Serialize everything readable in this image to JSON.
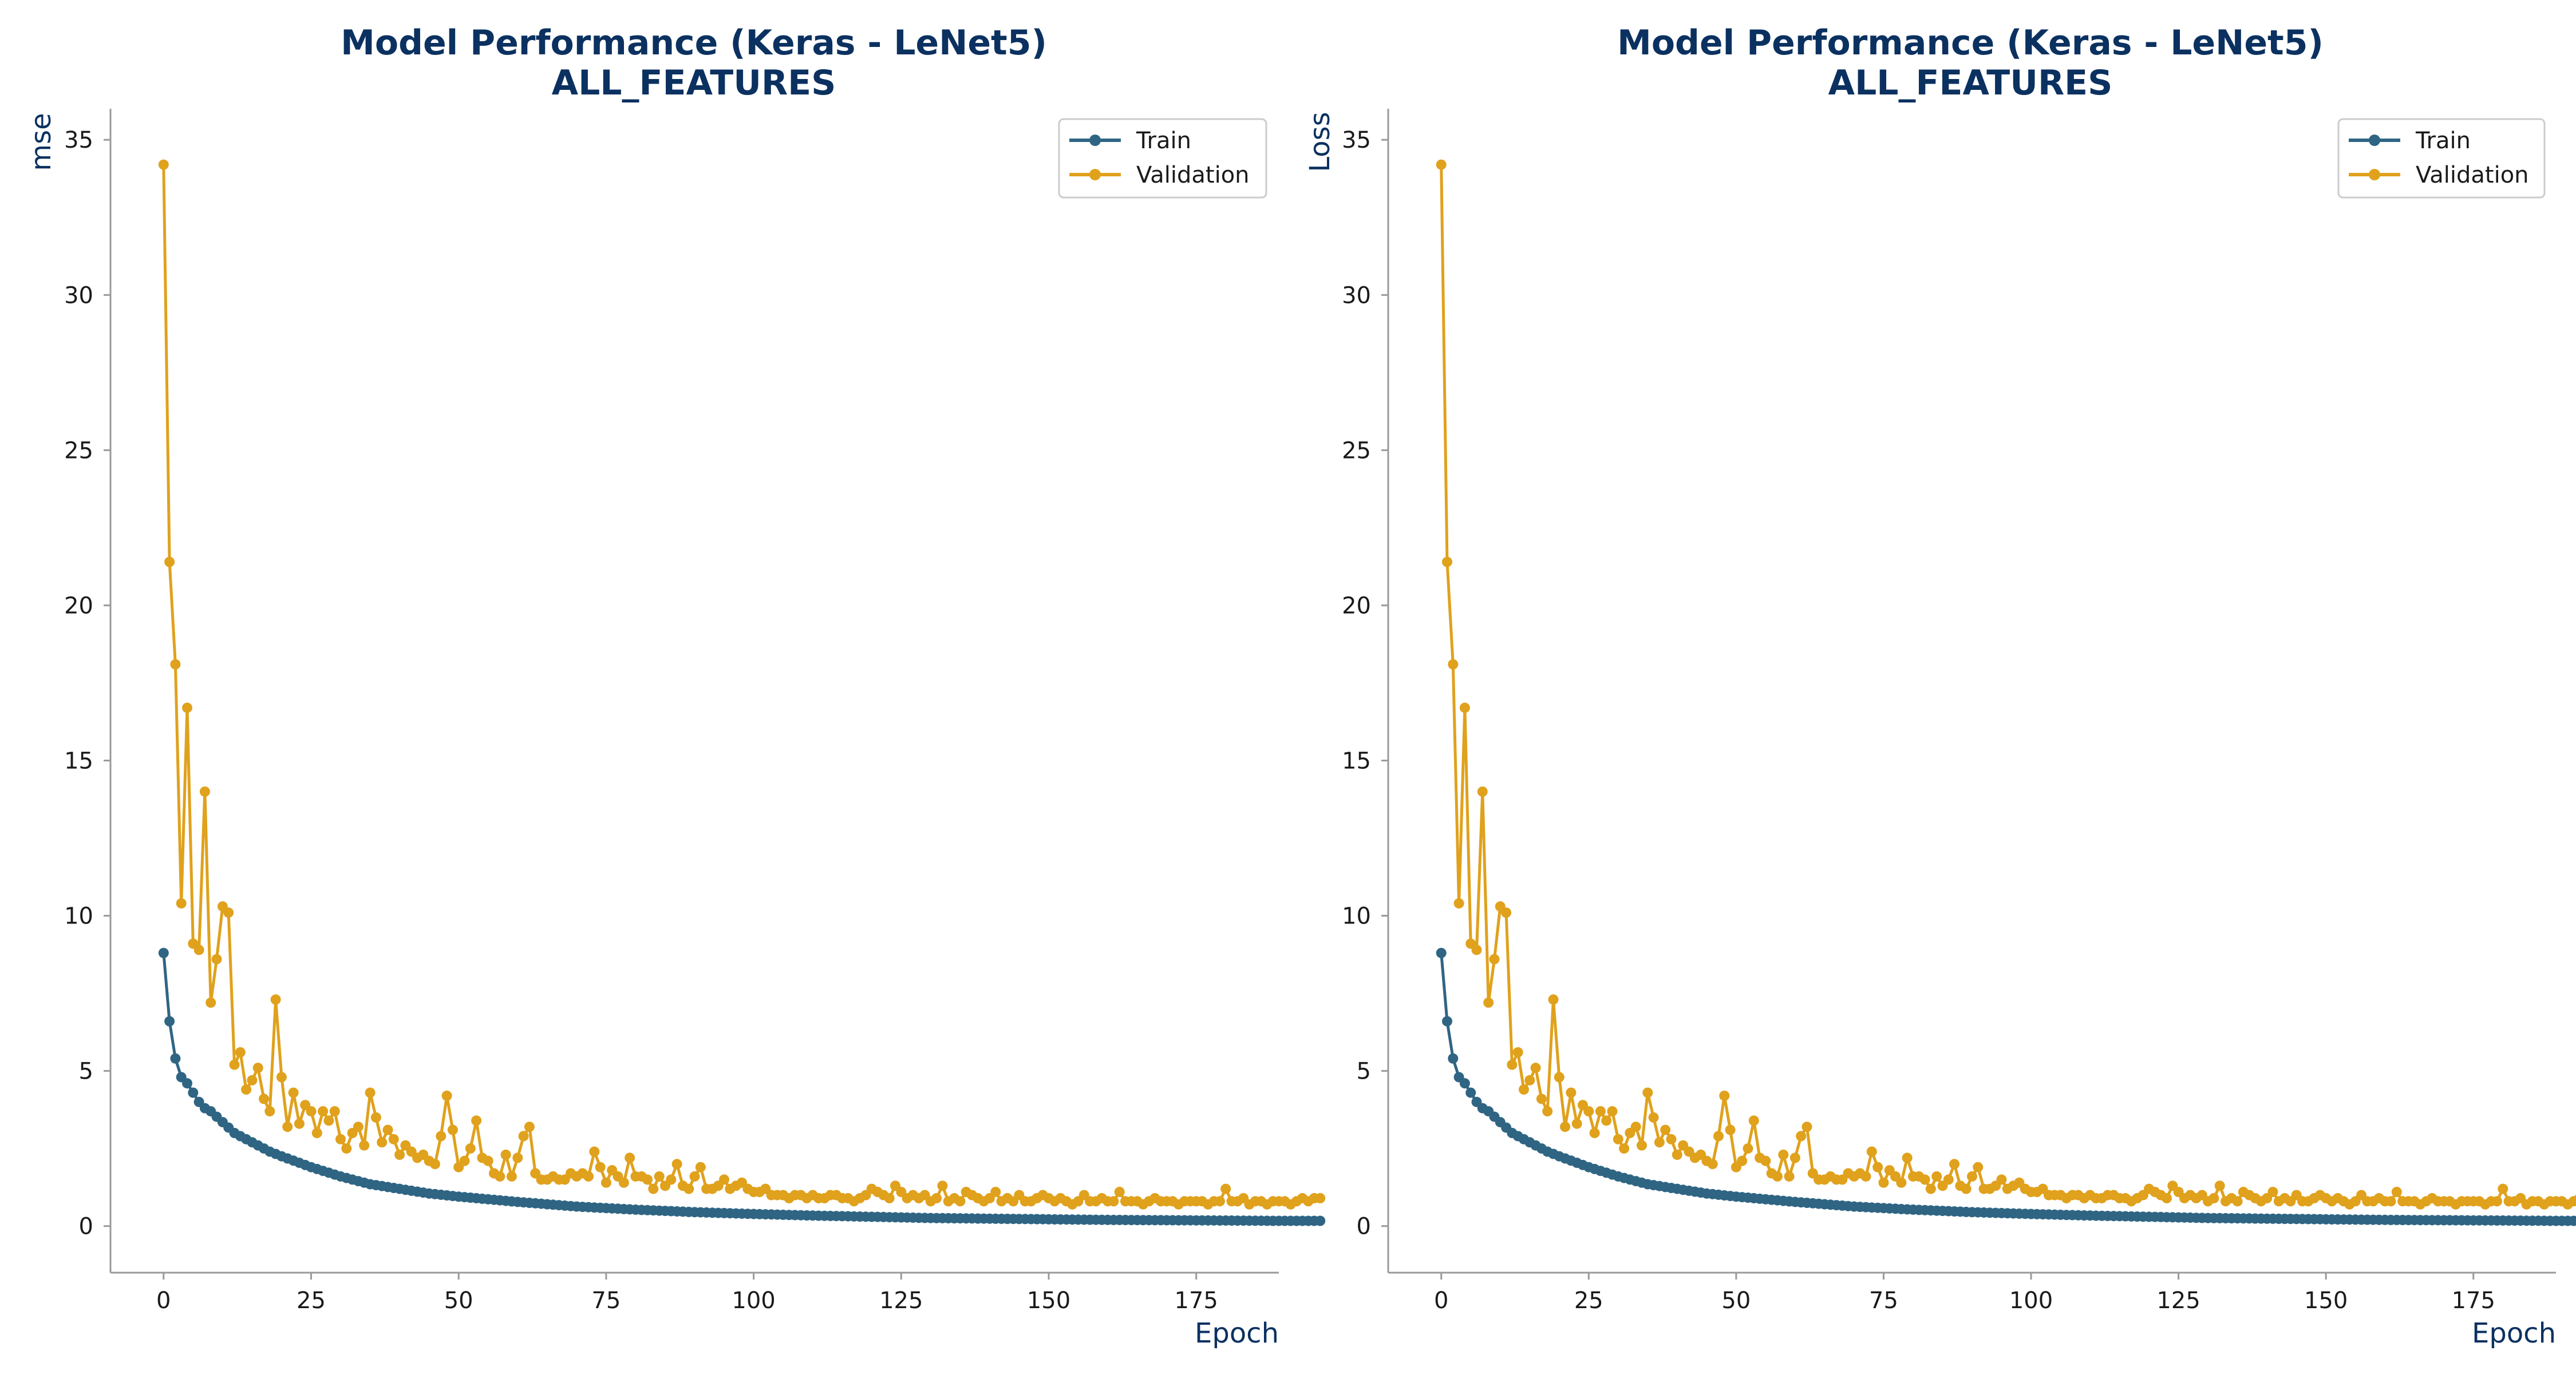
{
  "colors": {
    "train": "#2f6583",
    "validation": "#e0a11c",
    "title": "#0b3160",
    "axis": "#9a9a9a"
  },
  "chart_data": [
    {
      "type": "line",
      "title": "Model Performance (Keras - LeNet5)",
      "subtitle": "ALL_FEATURES",
      "xlabel": "Epoch",
      "ylabel": "mse",
      "xlim": [
        -9,
        189
      ],
      "ylim": [
        -1.5,
        36
      ],
      "xticks": [
        0,
        25,
        50,
        75,
        100,
        125,
        150,
        175
      ],
      "yticks": [
        0,
        5,
        10,
        15,
        20,
        25,
        30,
        35
      ],
      "grid": false,
      "legend": "top-right",
      "series": [
        {
          "name": "Train",
          "color": "#2f6583",
          "anchors": [
            [
              0,
              8.8
            ],
            [
              1,
              6.6
            ],
            [
              2,
              5.4
            ],
            [
              3,
              4.8
            ],
            [
              4,
              4.6
            ],
            [
              5,
              4.3
            ],
            [
              6,
              4.0
            ],
            [
              7,
              3.8
            ],
            [
              8,
              3.7
            ],
            [
              10,
              3.35
            ],
            [
              12,
              3.0
            ],
            [
              15,
              2.7
            ],
            [
              18,
              2.4
            ],
            [
              20,
              2.25
            ],
            [
              25,
              1.9
            ],
            [
              30,
              1.6
            ],
            [
              35,
              1.35
            ],
            [
              40,
              1.2
            ],
            [
              45,
              1.05
            ],
            [
              50,
              0.95
            ],
            [
              60,
              0.78
            ],
            [
              70,
              0.63
            ],
            [
              80,
              0.53
            ],
            [
              90,
              0.45
            ],
            [
              100,
              0.39
            ],
            [
              110,
              0.34
            ],
            [
              120,
              0.3
            ],
            [
              130,
              0.26
            ],
            [
              140,
              0.24
            ],
            [
              150,
              0.22
            ],
            [
              160,
              0.2
            ],
            [
              170,
              0.19
            ],
            [
              180,
              0.18
            ],
            [
              188,
              0.17
            ]
          ]
        },
        {
          "name": "Validation",
          "color": "#e0a11c",
          "values": [
            34.2,
            21.4,
            18.1,
            10.4,
            16.7,
            9.1,
            8.9,
            14.0,
            7.2,
            8.6,
            10.3,
            10.1,
            5.2,
            5.6,
            4.4,
            4.7,
            5.1,
            4.1,
            3.7,
            7.3,
            4.8,
            3.2,
            4.3,
            3.3,
            3.9,
            3.7,
            3.0,
            3.7,
            3.4,
            3.7,
            2.8,
            2.5,
            3.0,
            3.2,
            2.6,
            4.3,
            3.5,
            2.7,
            3.1,
            2.8,
            2.3,
            2.6,
            2.4,
            2.2,
            2.3,
            2.1,
            2.0,
            2.9,
            4.2,
            3.1,
            1.9,
            2.1,
            2.5,
            3.4,
            2.2,
            2.1,
            1.7,
            1.6,
            2.3,
            1.6,
            2.2,
            2.9,
            3.2,
            1.7,
            1.5,
            1.5,
            1.6,
            1.5,
            1.5,
            1.7,
            1.6,
            1.7,
            1.6,
            2.4,
            1.9,
            1.4,
            1.8,
            1.6,
            1.4,
            2.2,
            1.6,
            1.6,
            1.5,
            1.2,
            1.6,
            1.3,
            1.5,
            2.0,
            1.3,
            1.2,
            1.6,
            1.9,
            1.2,
            1.2,
            1.3,
            1.5,
            1.2,
            1.3,
            1.4,
            1.2,
            1.1,
            1.1,
            1.2,
            1.0,
            1.0,
            1.0,
            0.9,
            1.0,
            1.0,
            0.9,
            1.0,
            0.9,
            0.9,
            1.0,
            1.0,
            0.9,
            0.9,
            0.8,
            0.9,
            1.0,
            1.2,
            1.1,
            1.0,
            0.9,
            1.3,
            1.1,
            0.9,
            1.0,
            0.9,
            1.0,
            0.8,
            0.9,
            1.3,
            0.8,
            0.9,
            0.8,
            1.1,
            1.0,
            0.9,
            0.8,
            0.9,
            1.1,
            0.8,
            0.9,
            0.8,
            1.0,
            0.8,
            0.8,
            0.9,
            1.0,
            0.9,
            0.8,
            0.9,
            0.8,
            0.7,
            0.8,
            1.0,
            0.8,
            0.8,
            0.9,
            0.8,
            0.8,
            1.1,
            0.8,
            0.8,
            0.8,
            0.7,
            0.8,
            0.9,
            0.8,
            0.8,
            0.8,
            0.7,
            0.8,
            0.8,
            0.8,
            0.8,
            0.7,
            0.8,
            0.8,
            1.2,
            0.8,
            0.8,
            0.9,
            0.7,
            0.8,
            0.8,
            0.7,
            0.8,
            0.8,
            0.8,
            0.7,
            0.8,
            0.9,
            0.8,
            0.9,
            0.9
          ]
        }
      ]
    },
    {
      "type": "line",
      "title": "Model Performance (Keras - LeNet5)",
      "subtitle": "ALL_FEATURES",
      "xlabel": "Epoch",
      "ylabel": "Loss",
      "xlim": [
        -9,
        189
      ],
      "ylim": [
        -1.5,
        36
      ],
      "xticks": [
        0,
        25,
        50,
        75,
        100,
        125,
        150,
        175
      ],
      "yticks": [
        0,
        5,
        10,
        15,
        20,
        25,
        30,
        35
      ],
      "grid": false,
      "legend": "top-right",
      "series": [
        {
          "name": "Train",
          "color": "#2f6583",
          "anchors": [
            [
              0,
              8.8
            ],
            [
              1,
              6.6
            ],
            [
              2,
              5.4
            ],
            [
              3,
              4.8
            ],
            [
              4,
              4.6
            ],
            [
              5,
              4.3
            ],
            [
              6,
              4.0
            ],
            [
              7,
              3.8
            ],
            [
              8,
              3.7
            ],
            [
              10,
              3.35
            ],
            [
              12,
              3.0
            ],
            [
              15,
              2.7
            ],
            [
              18,
              2.4
            ],
            [
              20,
              2.25
            ],
            [
              25,
              1.9
            ],
            [
              30,
              1.6
            ],
            [
              35,
              1.35
            ],
            [
              40,
              1.2
            ],
            [
              45,
              1.05
            ],
            [
              50,
              0.95
            ],
            [
              60,
              0.78
            ],
            [
              70,
              0.63
            ],
            [
              80,
              0.53
            ],
            [
              90,
              0.45
            ],
            [
              100,
              0.39
            ],
            [
              110,
              0.34
            ],
            [
              120,
              0.3
            ],
            [
              130,
              0.26
            ],
            [
              140,
              0.24
            ],
            [
              150,
              0.22
            ],
            [
              160,
              0.2
            ],
            [
              170,
              0.19
            ],
            [
              180,
              0.18
            ],
            [
              188,
              0.17
            ]
          ]
        },
        {
          "name": "Validation",
          "color": "#e0a11c",
          "values": [
            34.2,
            21.4,
            18.1,
            10.4,
            16.7,
            9.1,
            8.9,
            14.0,
            7.2,
            8.6,
            10.3,
            10.1,
            5.2,
            5.6,
            4.4,
            4.7,
            5.1,
            4.1,
            3.7,
            7.3,
            4.8,
            3.2,
            4.3,
            3.3,
            3.9,
            3.7,
            3.0,
            3.7,
            3.4,
            3.7,
            2.8,
            2.5,
            3.0,
            3.2,
            2.6,
            4.3,
            3.5,
            2.7,
            3.1,
            2.8,
            2.3,
            2.6,
            2.4,
            2.2,
            2.3,
            2.1,
            2.0,
            2.9,
            4.2,
            3.1,
            1.9,
            2.1,
            2.5,
            3.4,
            2.2,
            2.1,
            1.7,
            1.6,
            2.3,
            1.6,
            2.2,
            2.9,
            3.2,
            1.7,
            1.5,
            1.5,
            1.6,
            1.5,
            1.5,
            1.7,
            1.6,
            1.7,
            1.6,
            2.4,
            1.9,
            1.4,
            1.8,
            1.6,
            1.4,
            2.2,
            1.6,
            1.6,
            1.5,
            1.2,
            1.6,
            1.3,
            1.5,
            2.0,
            1.3,
            1.2,
            1.6,
            1.9,
            1.2,
            1.2,
            1.3,
            1.5,
            1.2,
            1.3,
            1.4,
            1.2,
            1.1,
            1.1,
            1.2,
            1.0,
            1.0,
            1.0,
            0.9,
            1.0,
            1.0,
            0.9,
            1.0,
            0.9,
            0.9,
            1.0,
            1.0,
            0.9,
            0.9,
            0.8,
            0.9,
            1.0,
            1.2,
            1.1,
            1.0,
            0.9,
            1.3,
            1.1,
            0.9,
            1.0,
            0.9,
            1.0,
            0.8,
            0.9,
            1.3,
            0.8,
            0.9,
            0.8,
            1.1,
            1.0,
            0.9,
            0.8,
            0.9,
            1.1,
            0.8,
            0.9,
            0.8,
            1.0,
            0.8,
            0.8,
            0.9,
            1.0,
            0.9,
            0.8,
            0.9,
            0.8,
            0.7,
            0.8,
            1.0,
            0.8,
            0.8,
            0.9,
            0.8,
            0.8,
            1.1,
            0.8,
            0.8,
            0.8,
            0.7,
            0.8,
            0.9,
            0.8,
            0.8,
            0.8,
            0.7,
            0.8,
            0.8,
            0.8,
            0.8,
            0.7,
            0.8,
            0.8,
            1.2,
            0.8,
            0.8,
            0.9,
            0.7,
            0.8,
            0.8,
            0.7,
            0.8,
            0.8,
            0.8,
            0.7,
            0.8,
            0.9,
            0.8,
            0.9,
            0.9
          ]
        }
      ]
    }
  ]
}
